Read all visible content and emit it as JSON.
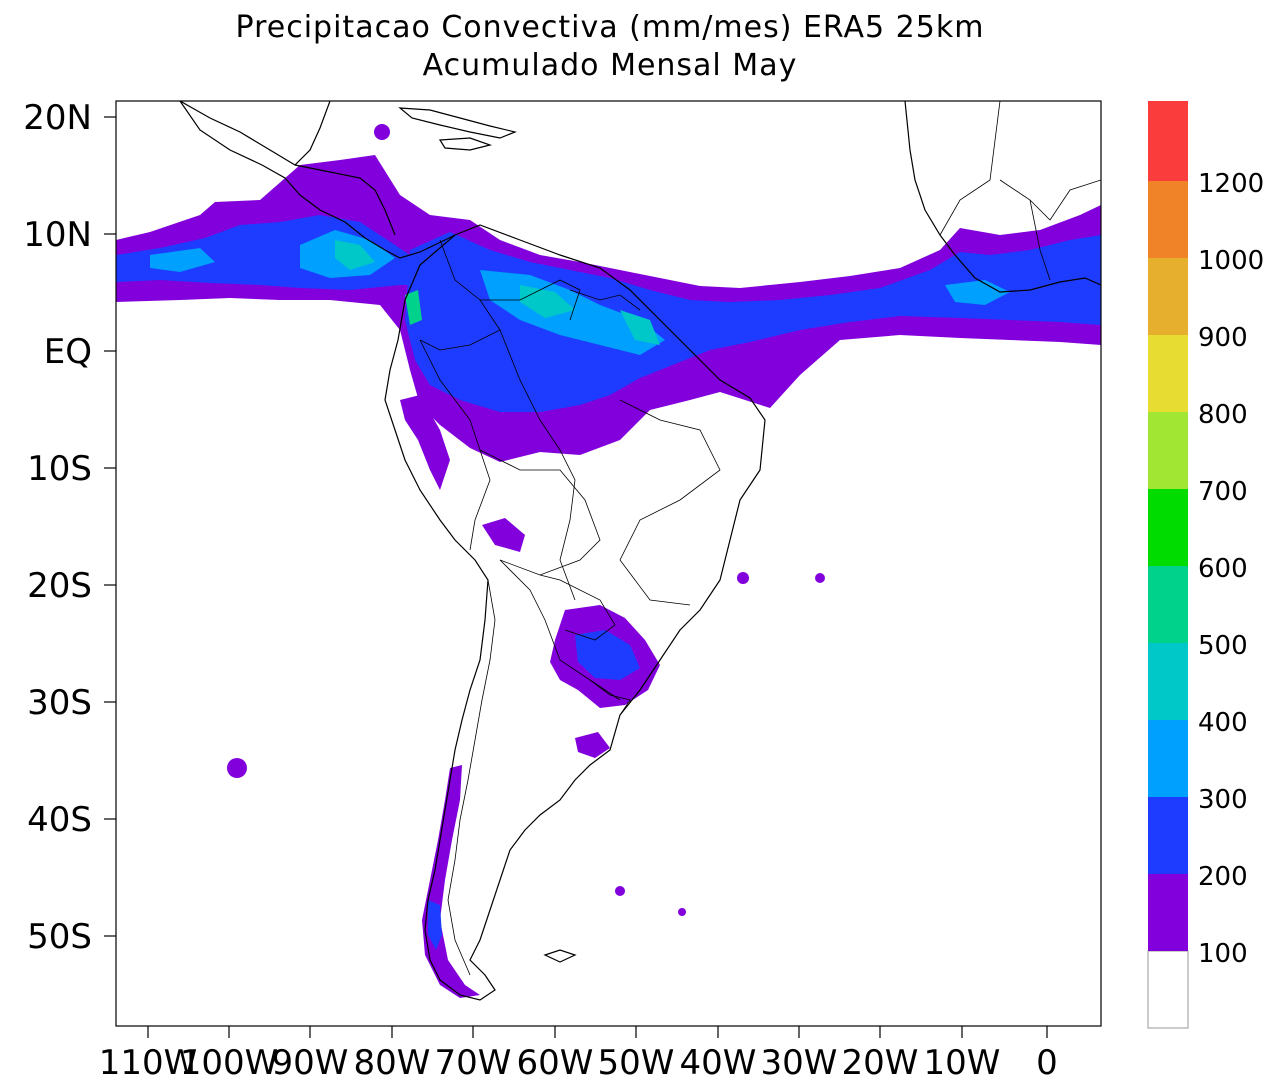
{
  "title": "Precipitacao Convectiva (mm/mes) ERA5  25km",
  "subtitle": "Acumulado Mensal May",
  "lat_labels": [
    "20N",
    "10N",
    "EQ",
    "10S",
    "20S",
    "30S",
    "40S",
    "50S"
  ],
  "lon_labels": [
    "110W",
    "100W",
    "90W",
    "80W",
    "70W",
    "60W",
    "50W",
    "40W",
    "30W",
    "20W",
    "10W",
    "0"
  ],
  "lon_ticks": [
    -110,
    -100,
    -90,
    -80,
    -70,
    -60,
    -50,
    -40,
    -30,
    -20,
    -10,
    0
  ],
  "lat_ticks": [
    20,
    10,
    0,
    -10,
    -20,
    -30,
    -40,
    -50
  ],
  "colorbar": {
    "labels": [
      "100",
      "200",
      "300",
      "400",
      "500",
      "600",
      "700",
      "800",
      "900",
      "1000",
      "1200"
    ],
    "colors": [
      "#ffffff",
      "#8200dc",
      "#1e3cff",
      "#00a0ff",
      "#00c8c8",
      "#00d28c",
      "#00dc00",
      "#a0e632",
      "#e6dc32",
      "#e6af2d",
      "#f08228",
      "#fa3c3c"
    ]
  },
  "colors": {
    "purple": "#8200dc",
    "blue": "#1e3cff",
    "lightblue": "#00a0ff",
    "cyan": "#00c8c8",
    "green": "#00d28c"
  }
}
